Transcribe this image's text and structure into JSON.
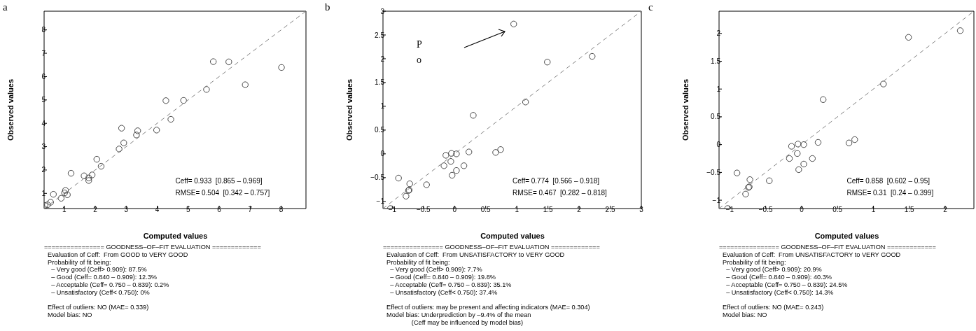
{
  "chart_data": [
    {
      "type": "scatter",
      "title": "a",
      "xlabel": "Computed values",
      "ylabel": "Observed values",
      "xlim": [
        0.35,
        8.8
      ],
      "ylim": [
        0.35,
        8.8
      ],
      "xticks": [
        1,
        2,
        3,
        4,
        5,
        6,
        7,
        8
      ],
      "yticks": [
        1,
        2,
        3,
        4,
        5,
        6,
        7,
        8
      ],
      "marker": "circle",
      "series": [
        {
          "type": "scatter",
          "color": "#333333",
          "x": [
            0.38,
            0.46,
            0.56,
            0.65,
            0.9,
            1.01,
            1.04,
            1.1,
            1.22,
            1.64,
            1.79,
            1.79,
            1.9,
            2.05,
            2.19,
            2.77,
            2.85,
            2.92,
            3.33,
            3.37,
            3.98,
            4.28,
            4.44,
            4.85,
            5.59,
            5.81,
            6.31,
            6.84,
            8.01
          ],
          "values": [
            0.48,
            0.51,
            0.62,
            0.96,
            0.79,
            1.02,
            1.13,
            0.94,
            1.86,
            1.75,
            1.66,
            1.55,
            1.79,
            2.46,
            2.16,
            2.9,
            3.79,
            3.16,
            3.5,
            3.68,
            3.71,
            4.97,
            4.17,
            4.98,
            5.45,
            6.64,
            6.63,
            5.65,
            6.39
          ]
        },
        {
          "type": "line",
          "color": "#808080",
          "line_style": "dashed",
          "marker": "none",
          "x": [
            0.35,
            8.8
          ],
          "values": [
            0.35,
            8.8
          ]
        }
      ],
      "annotations": [
        "Ceff= 0.933  [0.865 – 0.969]",
        "RMSE= 0.504  [0.342 – 0.757]",
        "================ GOODNESS–OF–FIT EVALUATION =============\n  Evaluation of Ceff:  From GOOD to VERY GOOD\n  Probability of fit being:\n    – Very good (Ceff> 0.909): 87.5%\n    – Good (Ceff= 0.840 – 0.909): 12.3%\n    – Acceptable (Ceff= 0.750 – 0.839): 0.2%\n    – Unsatisfactory (Ceff< 0.750): 0%\n\n  Effect of outliers: NO (MAE= 0.339)\n  Model bias: NO"
      ]
    },
    {
      "type": "scatter",
      "title": "b",
      "xlabel": "Computed values",
      "ylabel": "Observed values",
      "xlim": [
        -1.15,
        3
      ],
      "ylim": [
        -1.15,
        3
      ],
      "xticks": [
        -1,
        -0.5,
        0,
        0.5,
        1,
        1.5,
        2,
        2.5,
        3
      ],
      "yticks": [
        -1,
        -0.5,
        0,
        0.5,
        1,
        1.5,
        2,
        2.5,
        3
      ],
      "marker": "circle",
      "series": [
        {
          "type": "scatter",
          "color": "#333333",
          "x": [
            -1.03,
            -0.9,
            -0.78,
            -0.73,
            -0.74,
            -0.72,
            -0.45,
            -0.17,
            -0.14,
            -0.06,
            -0.05,
            -0.04,
            0.03,
            0.03,
            0.15,
            0.23,
            0.3,
            0.66,
            0.74,
            0.95,
            1.14,
            1.49,
            2.21
          ],
          "values": [
            -1.15,
            -0.51,
            -0.89,
            -0.76,
            -0.77,
            -0.63,
            -0.65,
            -0.25,
            -0.03,
            -0.16,
            0.01,
            -0.45,
            -0.35,
            0,
            -0.25,
            0.04,
            0.81,
            0.03,
            0.09,
            2.73,
            1.09,
            1.93,
            2.05
          ]
        },
        {
          "type": "line",
          "color": "#808080",
          "line_style": "dashed",
          "marker": "none",
          "x": [
            -1.15,
            3
          ],
          "values": [
            -1.15,
            3
          ]
        }
      ],
      "annotations": [
        "Ceff= 0.774  [0.566 – 0.918]",
        "RMSE= 0.467  [0.282 – 0.818]",
        "================ GOODNESS–OF–FIT EVALUATION =============\n  Evaluation of Ceff:  From UNSATISFACTORY to VERY GOOD\n  Probability of fit being:\n    – Very good (Ceff> 0.909): 7.7%\n    – Good (Ceff= 0.840 – 0.909): 19.8%\n    – Acceptable (Ceff= 0.750 – 0.839): 35.1%\n    – Unsatisfactory (Ceff< 0.750): 37.4%\n\n  Effect of outliers: may be present and affecting indicators (MAE= 0.304)\n  Model bias: Underprediction by –9.4% of the mean\n                (Ceff may be influenced by model bias)",
        "Po"
      ]
    },
    {
      "type": "scatter",
      "title": "c",
      "xlabel": "Computed values",
      "ylabel": "Observed values",
      "xlim": [
        -1.15,
        2.4
      ],
      "ylim": [
        -1.15,
        2.4
      ],
      "xticks": [
        -1,
        -0.5,
        0,
        0.5,
        1,
        1.5,
        2
      ],
      "yticks": [
        -1,
        -0.5,
        0,
        0.5,
        1,
        1.5,
        2
      ],
      "marker": "circle",
      "series": [
        {
          "type": "scatter",
          "color": "#333333",
          "x": [
            -1.03,
            -0.9,
            -0.78,
            -0.73,
            -0.74,
            -0.72,
            -0.45,
            -0.17,
            -0.14,
            -0.06,
            -0.05,
            -0.04,
            0.03,
            0.03,
            0.15,
            0.23,
            0.3,
            0.66,
            0.74,
            1.14,
            1.49,
            2.21
          ],
          "values": [
            -1.15,
            -0.51,
            -0.89,
            -0.76,
            -0.77,
            -0.63,
            -0.65,
            -0.25,
            -0.03,
            -0.16,
            0.01,
            -0.45,
            -0.35,
            0,
            -0.25,
            0.04,
            0.81,
            0.03,
            0.09,
            1.09,
            1.93,
            2.05
          ]
        },
        {
          "type": "line",
          "color": "#808080",
          "line_style": "dashed",
          "marker": "none",
          "x": [
            -1.15,
            2.4
          ],
          "values": [
            -1.15,
            2.4
          ]
        }
      ],
      "annotations": [
        "Ceff= 0.858  [0.602 – 0.95]",
        "RMSE= 0.31  [0.24 – 0.399]",
        "================ GOODNESS–OF–FIT EVALUATION =============\n  Evaluation of Ceff:  From UNSATISFACTORY to VERY GOOD\n  Probability of fit being:\n    – Very good (Ceff> 0.909): 20.9%\n    – Good (Ceff= 0.840 – 0.909): 40.3%\n    – Acceptable (Ceff= 0.750 – 0.839): 24.5%\n    – Unsatisfactory (Ceff< 0.750): 14.3%\n\n  Effect of outliers: NO (MAE= 0.243)\n  Model bias: NO"
      ]
    }
  ]
}
